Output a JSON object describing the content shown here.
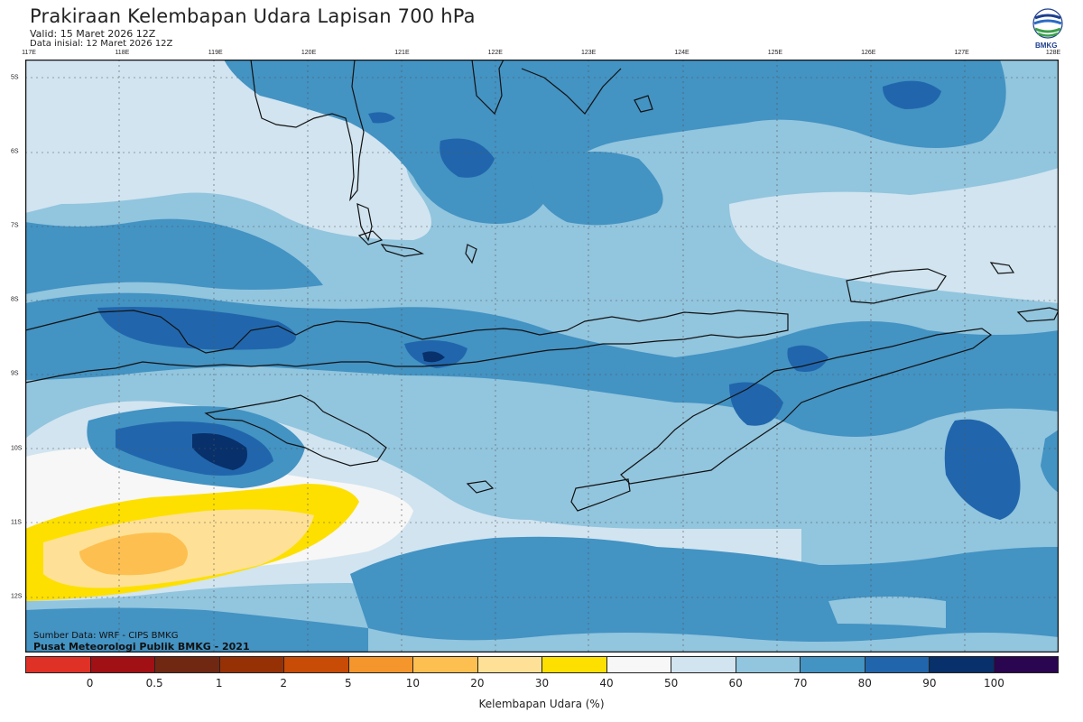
{
  "header": {
    "title": "Prakiraan Kelembapan Udara Lapisan 700 hPa",
    "valid": "Valid: 15 Maret 2026 12Z",
    "initial": "Data inisial: 12 Maret 2026 12Z"
  },
  "logo": {
    "text": "BMKG"
  },
  "axes": {
    "longitudes": [
      "117E",
      "118E",
      "119E",
      "120E",
      "121E",
      "122E",
      "123E",
      "124E",
      "125E",
      "126E",
      "127E",
      "128E"
    ],
    "latitudes": [
      "5S",
      "6S",
      "7S",
      "8S",
      "9S",
      "10S",
      "11S",
      "12S"
    ]
  },
  "footer": {
    "source": "Sumber Data: WRF - CIPS BMKG",
    "credit": "Pusat Meteorologi Publik BMKG - 2021"
  },
  "colorbar": {
    "title": "Kelembapan Udara (%)",
    "ticks": [
      "0",
      "0.5",
      "1",
      "2",
      "5",
      "10",
      "20",
      "30",
      "40",
      "50",
      "60",
      "70",
      "80",
      "90",
      "100"
    ],
    "colors": [
      "#e03127",
      "#a11014",
      "#702813",
      "#963106",
      "#c84b06",
      "#f4962b",
      "#fdbf4f",
      "#fee196",
      "#fde000",
      "#f7f7f7",
      "#d1e4f0",
      "#92c5de",
      "#4393c3",
      "#2166ac",
      "#08306b",
      "#2a0550"
    ]
  }
}
